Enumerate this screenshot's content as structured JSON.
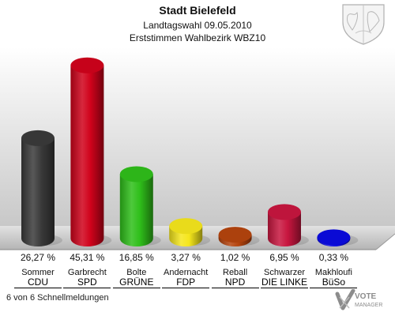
{
  "header": {
    "title": "Stadt Bielefeld",
    "subtitle1": "Landtagswahl 09.05.2010",
    "subtitle2": "Erststimmen Wahlbezirk WBZ10"
  },
  "footer": {
    "status": "6 von 6 Schnellmeldungen",
    "logo_title": "VOTE",
    "logo_sub": "MANAGER"
  },
  "chart_data": {
    "type": "bar",
    "title": "Stadt Bielefeld",
    "ylim": [
      0,
      50
    ],
    "categories": [
      "CDU",
      "SPD",
      "GRÜNE",
      "FDP",
      "NPD",
      "DIE LINKE",
      "BüSo"
    ],
    "candidates": [
      "Sommer",
      "Garbrecht",
      "Bolte",
      "Andernacht",
      "Reball",
      "Schwarzer",
      "Makhloufi"
    ],
    "values": [
      26.27,
      45.31,
      16.85,
      3.27,
      1.02,
      6.95,
      0.33
    ],
    "labels": [
      "26,27 %",
      "45,31 %",
      "16,85 %",
      "3,27 %",
      "1,02 %",
      "6,95 %",
      "0,33 %"
    ],
    "colors": [
      "#3a3a3a",
      "#d0021b",
      "#2fbf1a",
      "#f5e61c",
      "#b5440e",
      "#c8163f",
      "#0a0ae0"
    ]
  }
}
